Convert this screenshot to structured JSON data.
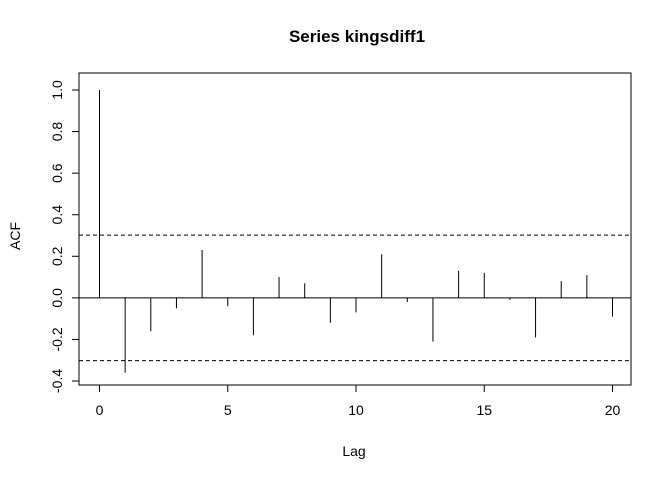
{
  "chart_data": {
    "type": "bar",
    "title": "Series  kingsdiff1",
    "xlabel": "Lag",
    "ylabel": "ACF",
    "xlim": [
      0,
      20
    ],
    "ylim": [
      -0.4,
      1.0
    ],
    "x_ticks": [
      0,
      5,
      10,
      15,
      20
    ],
    "y_ticks": [
      -0.4,
      -0.2,
      0.0,
      0.2,
      0.4,
      0.6,
      0.8,
      1.0
    ],
    "x_tick_labels": [
      "0",
      "5",
      "10",
      "15",
      "20"
    ],
    "y_tick_labels": [
      "-0.4",
      "-0.2",
      "0.0",
      "0.2",
      "0.4",
      "0.6",
      "0.8",
      "1.0"
    ],
    "lags": [
      0,
      1,
      2,
      3,
      4,
      5,
      6,
      7,
      8,
      9,
      10,
      11,
      12,
      13,
      14,
      15,
      16,
      17,
      18,
      19,
      20
    ],
    "values": [
      1.0,
      -0.36,
      -0.16,
      -0.05,
      0.23,
      -0.04,
      -0.18,
      0.1,
      0.07,
      -0.12,
      -0.07,
      0.21,
      -0.02,
      -0.21,
      0.13,
      0.12,
      -0.01,
      -0.19,
      0.08,
      0.11,
      -0.09
    ],
    "confidence_bounds": [
      0.302,
      -0.302
    ],
    "grid": false,
    "colors": {
      "spikes": "#000000",
      "bounds": "#000000",
      "axes": "#000000"
    }
  }
}
